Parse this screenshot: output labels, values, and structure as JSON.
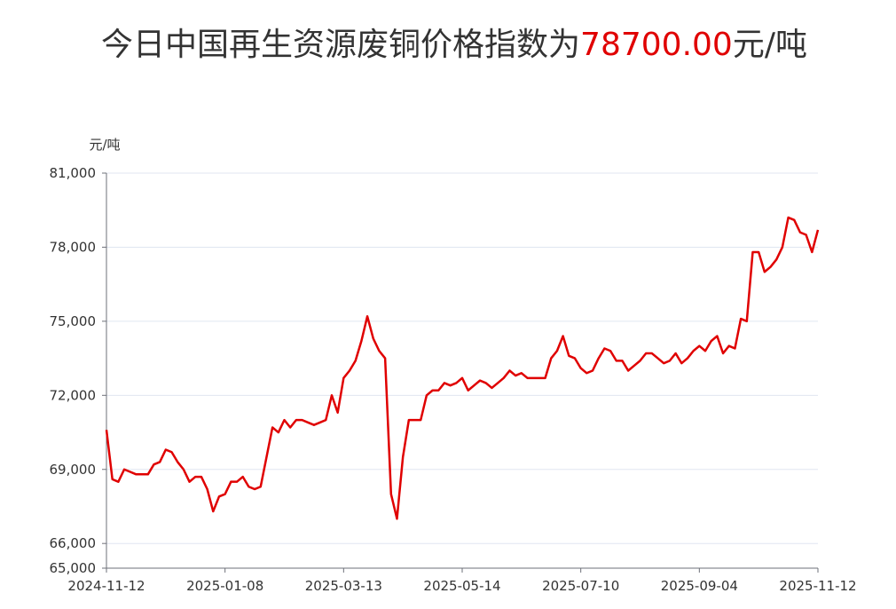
{
  "chart_data": {
    "type": "line",
    "title": "今日中国再生资源废铜价格指数为",
    "title_value": "78700.00",
    "title_unit": "元/吨",
    "y_label": "元/吨",
    "categories": [
      "2024-11-12",
      null,
      null,
      null,
      null,
      null,
      null,
      null,
      null,
      null,
      null,
      null,
      null,
      null,
      null,
      null,
      null,
      null,
      null,
      null,
      "2025-01-08",
      null,
      null,
      null,
      null,
      null,
      null,
      null,
      null,
      null,
      null,
      null,
      null,
      null,
      null,
      null,
      null,
      null,
      null,
      null,
      "2025-03-13",
      null,
      null,
      null,
      null,
      null,
      null,
      null,
      null,
      null,
      null,
      null,
      null,
      null,
      null,
      null,
      null,
      null,
      null,
      null,
      "2025-05-14",
      null,
      null,
      null,
      null,
      null,
      null,
      null,
      null,
      null,
      null,
      null,
      null,
      null,
      null,
      null,
      null,
      null,
      null,
      null,
      "2025-07-10",
      null,
      null,
      null,
      null,
      null,
      null,
      null,
      null,
      null,
      null,
      null,
      null,
      null,
      null,
      null,
      null,
      null,
      null,
      null,
      "2025-09-04",
      null,
      null,
      null,
      null,
      null,
      null,
      null,
      null,
      null,
      null,
      null,
      null,
      null,
      null,
      null,
      null,
      null,
      null,
      null,
      "2025-11-12"
    ],
    "series": [
      {
        "color": "#e00000",
        "values": [
          70600,
          68600,
          68500,
          69000,
          68900,
          68800,
          68800,
          68800,
          69200,
          69300,
          69800,
          69700,
          69300,
          69000,
          68500,
          68700,
          68700,
          68200,
          67300,
          67900,
          68000,
          68500,
          68500,
          68700,
          68300,
          68200,
          68300,
          69500,
          70700,
          70500,
          71000,
          70700,
          71000,
          71000,
          70900,
          70800,
          70900,
          71000,
          72000,
          71300,
          72700,
          73000,
          73400,
          74200,
          75200,
          74300,
          73800,
          73500,
          68000,
          67000,
          69500,
          71000,
          71000,
          71000,
          72000,
          72200,
          72200,
          72500,
          72400,
          72500,
          72700,
          72200,
          72400,
          72600,
          72500,
          72300,
          72500,
          72700,
          73000,
          72800,
          72900,
          72700,
          72700,
          72700,
          72700,
          73500,
          73800,
          74400,
          73600,
          73500,
          73100,
          72900,
          73000,
          73500,
          73900,
          73800,
          73400,
          73400,
          73000,
          73200,
          73400,
          73700,
          73700,
          73500,
          73300,
          73400,
          73700,
          73300,
          73500,
          73800,
          74000,
          73800,
          74200,
          74400,
          73700,
          74000,
          73900,
          75100,
          75000,
          77800,
          77800,
          77000,
          77200,
          77500,
          78000,
          79200,
          79100,
          78600,
          78500,
          77800,
          78700
        ]
      }
    ],
    "ylim": [
      65000,
      81000
    ],
    "yticks": [
      {
        "value": 65000,
        "label": "65,000"
      },
      {
        "value": 66000,
        "label": "66,000"
      },
      {
        "value": 69000,
        "label": "69,000"
      },
      {
        "value": 72000,
        "label": "72,000"
      },
      {
        "value": 75000,
        "label": "75,000"
      },
      {
        "value": 78000,
        "label": "78,000"
      },
      {
        "value": 81000,
        "label": "81,000"
      }
    ],
    "grid": true
  }
}
